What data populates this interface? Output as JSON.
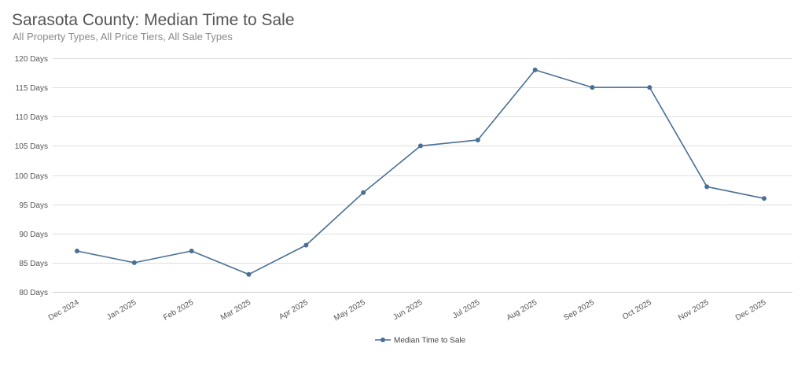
{
  "title": "Sarasota County: Median Time to Sale",
  "subtitle": "All Property Types, All Price Tiers, All Sale Types",
  "chart_data": {
    "type": "line",
    "title": "Sarasota County: Median Time to Sale",
    "subtitle": "All Property Types, All Price Tiers, All Sale Types",
    "xlabel": "",
    "ylabel": "",
    "categories": [
      "Dec 2024",
      "Jan 2025",
      "Feb 2025",
      "Mar 2025",
      "Apr 2025",
      "May 2025",
      "Jun 2025",
      "Jul 2025",
      "Aug 2025",
      "Sep 2025",
      "Oct 2025",
      "Nov 2025",
      "Dec 2025"
    ],
    "series": [
      {
        "name": "Median Time to Sale",
        "values": [
          87,
          85,
          87,
          83,
          88,
          97,
          105,
          106,
          118,
          115,
          115,
          98,
          96
        ],
        "color": "#4a6f94"
      }
    ],
    "ylim": [
      80,
      120
    ],
    "yticks": [
      80,
      85,
      90,
      95,
      100,
      105,
      110,
      115,
      120
    ],
    "ytick_suffix": " Days",
    "grid": true,
    "legend": "bottom-center"
  }
}
